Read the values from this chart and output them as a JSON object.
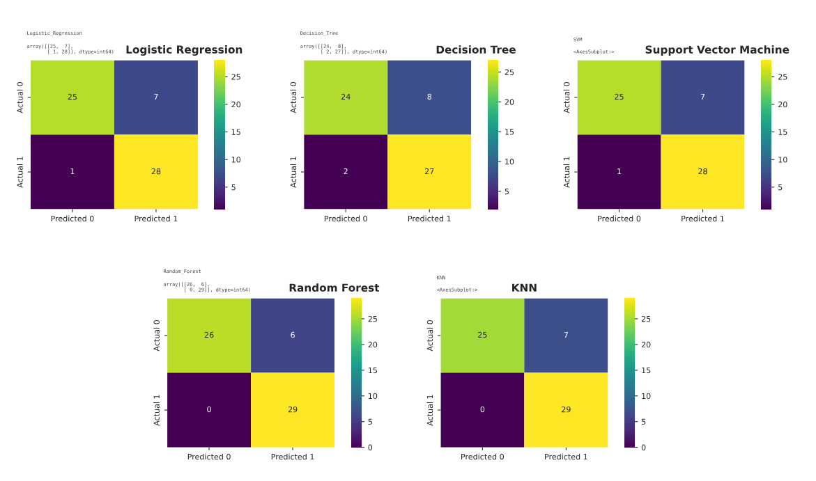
{
  "chart_data": [
    {
      "type": "heatmap",
      "title": "Logistic Regression",
      "annotations": [
        "Logistic_Regression",
        "array([[25,  7],\n       [ 1, 28]], dtype=int64)"
      ],
      "categories": [
        "Predicted 0",
        "Predicted 1"
      ],
      "y_categories": [
        "Actual 0",
        "Actual 1"
      ],
      "cells": [
        [
          25,
          7
        ],
        [
          1,
          28
        ]
      ],
      "data_labels": true,
      "clim": [
        1,
        28
      ],
      "cticks": [
        5,
        10,
        15,
        20,
        25
      ]
    },
    {
      "type": "heatmap",
      "title": "Decision Tree",
      "annotations": [
        "Decision_Tree",
        "array([[24,  8],\n       [ 2, 27]], dtype=int64)"
      ],
      "categories": [
        "Predicted 0",
        "Predicted 1"
      ],
      "y_categories": [
        "Actual 0",
        "Actual 1"
      ],
      "cells": [
        [
          24,
          8
        ],
        [
          2,
          27
        ]
      ],
      "data_labels": true,
      "clim": [
        2,
        27
      ],
      "cticks": [
        5,
        10,
        15,
        20,
        25
      ]
    },
    {
      "type": "heatmap",
      "title": "Support Vector Machine",
      "annotations": [
        "SVM",
        "<AxesSubplot:>"
      ],
      "categories": [
        "Predicted 0",
        "Predicted 1"
      ],
      "y_categories": [
        "Actual 0",
        "Actual 1"
      ],
      "cells": [
        [
          25,
          7
        ],
        [
          1,
          28
        ]
      ],
      "data_labels": true,
      "clim": [
        1,
        28
      ],
      "cticks": [
        5,
        10,
        15,
        20,
        25
      ]
    },
    {
      "type": "heatmap",
      "title": "Random Forest",
      "annotations": [
        "Random_Forest",
        "array([[26,  6],\n       [ 0, 29]], dtype=int64)"
      ],
      "categories": [
        "Predicted 0",
        "Predicted 1"
      ],
      "y_categories": [
        "Actual 0",
        "Actual 1"
      ],
      "cells": [
        [
          26,
          6
        ],
        [
          0,
          29
        ]
      ],
      "data_labels": true,
      "clim": [
        0,
        29
      ],
      "cticks": [
        0,
        5,
        10,
        15,
        20,
        25
      ]
    },
    {
      "type": "heatmap",
      "title": "KNN",
      "annotations": [
        "KNN",
        "<AxesSubplot:>"
      ],
      "categories": [
        "Predicted 0",
        "Predicted 1"
      ],
      "y_categories": [
        "Actual 0",
        "Actual 1"
      ],
      "cells": [
        [
          25,
          7
        ],
        [
          0,
          29
        ]
      ],
      "data_labels": true,
      "clim": [
        0,
        29
      ],
      "cticks": [
        0,
        5,
        10,
        15,
        20,
        25
      ]
    }
  ]
}
